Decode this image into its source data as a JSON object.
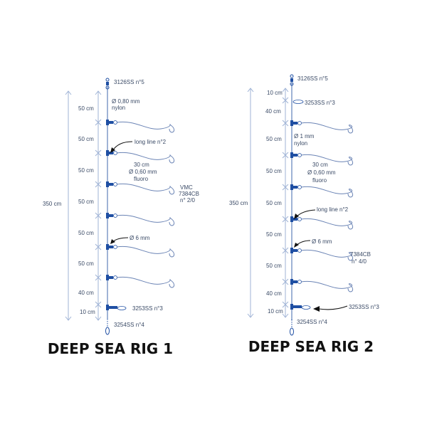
{
  "colors": {
    "line": "#9fb3d6",
    "snap": "#1f4fa3",
    "text": "#3a4a66",
    "title": "#111111",
    "accent": "#c7e07a"
  },
  "rig1": {
    "title": "DEEP SEA RIG 1",
    "total_length": "350 cm",
    "top_swivel": "3126SS n°5",
    "main_line": [
      "Ø 0,80 mm",
      "nylon"
    ],
    "segments": [
      "50 cm",
      "50 cm",
      "50 cm",
      "50 cm",
      "50 cm",
      "50 cm",
      "40 cm",
      "10 cm"
    ],
    "long_line": "long line n°2",
    "snood": [
      "30 cm",
      "Ø 0,60 mm",
      "fluoro"
    ],
    "hook": [
      "VMC",
      "7384CB",
      "n° 2/0"
    ],
    "bead": "Ø 6 mm",
    "bottom_swivel": "3253SS n°3",
    "end_snap": "3254SS n°4"
  },
  "rig2": {
    "title": "DEEP SEA RIG 2",
    "total_length": "350 cm",
    "top_swivel": "3126SS n°5",
    "upper_swivel": "3253SS n°3",
    "main_line": [
      "Ø 1 mm",
      "nylon"
    ],
    "segments": [
      "10 cm",
      "40 cm",
      "50 cm",
      "50 cm",
      "50 cm",
      "50 cm",
      "50 cm",
      "40 cm",
      "10 cm"
    ],
    "long_line": "long line n°2",
    "snood": [
      "30 cm",
      "Ø 0,60 mm",
      "fluoro"
    ],
    "hook": [
      "7384CB",
      "n° 4/0"
    ],
    "bead": "Ø 6 mm",
    "bottom_swivel": "3253SS n°3",
    "end_snap": "3254SS n°4"
  }
}
